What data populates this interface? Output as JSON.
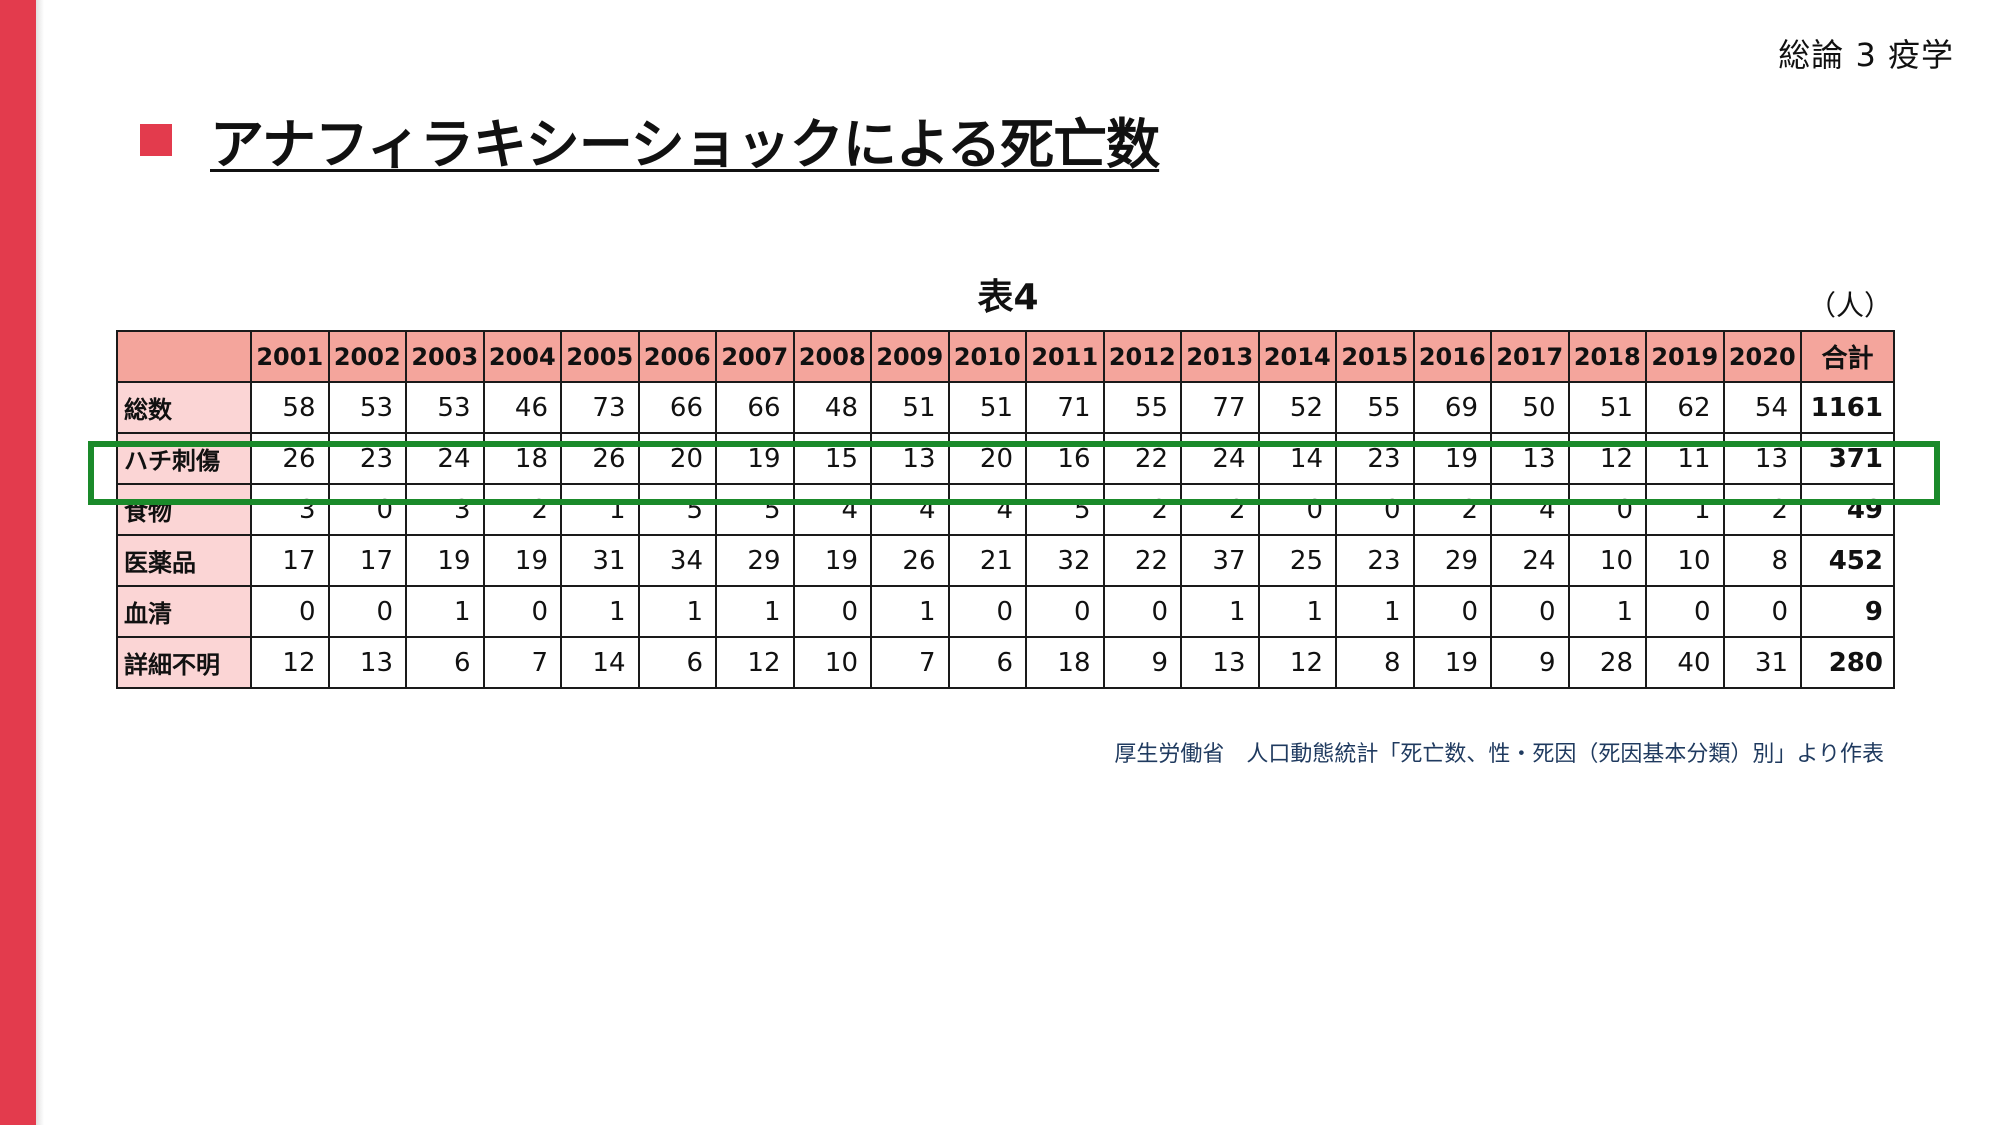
{
  "header": {
    "section_label": "総論 3 疫学"
  },
  "title": "アナフィラキシーショックによる死亡数",
  "table_caption": "表4",
  "unit": "（人）",
  "colors": {
    "accent": "#e33b4d",
    "header_fill": "#f4a59c",
    "row_head_fill": "#fbd5d5",
    "highlight": "#1a8a2a",
    "source_text": "#1f3a5f"
  },
  "table": {
    "columns": [
      "2001",
      "2002",
      "2003",
      "2004",
      "2005",
      "2006",
      "2007",
      "2008",
      "2009",
      "2010",
      "2011",
      "2012",
      "2013",
      "2014",
      "2015",
      "2016",
      "2017",
      "2018",
      "2019",
      "2020",
      "合計"
    ],
    "rows": [
      {
        "label": "総数",
        "values": [
          "58",
          "53",
          "53",
          "46",
          "73",
          "66",
          "66",
          "48",
          "51",
          "51",
          "71",
          "55",
          "77",
          "52",
          "55",
          "69",
          "50",
          "51",
          "62",
          "54",
          "1161"
        ]
      },
      {
        "label": "ハチ刺傷",
        "values": [
          "26",
          "23",
          "24",
          "18",
          "26",
          "20",
          "19",
          "15",
          "13",
          "20",
          "16",
          "22",
          "24",
          "14",
          "23",
          "19",
          "13",
          "12",
          "11",
          "13",
          "371"
        ]
      },
      {
        "label": "食物",
        "values": [
          "3",
          "0",
          "3",
          "2",
          "1",
          "5",
          "5",
          "4",
          "4",
          "4",
          "5",
          "2",
          "2",
          "0",
          "0",
          "2",
          "4",
          "0",
          "1",
          "2",
          "49"
        ]
      },
      {
        "label": "医薬品",
        "values": [
          "17",
          "17",
          "19",
          "19",
          "31",
          "34",
          "29",
          "19",
          "26",
          "21",
          "32",
          "22",
          "37",
          "25",
          "23",
          "29",
          "24",
          "10",
          "10",
          "8",
          "452"
        ]
      },
      {
        "label": "血清",
        "values": [
          "0",
          "0",
          "1",
          "0",
          "1",
          "1",
          "1",
          "0",
          "1",
          "0",
          "0",
          "0",
          "1",
          "1",
          "1",
          "0",
          "0",
          "1",
          "0",
          "0",
          "9"
        ]
      },
      {
        "label": "詳細不明",
        "values": [
          "12",
          "13",
          "6",
          "7",
          "14",
          "6",
          "12",
          "10",
          "7",
          "6",
          "18",
          "9",
          "13",
          "12",
          "8",
          "19",
          "9",
          "28",
          "40",
          "31",
          "280"
        ]
      }
    ]
  },
  "source_note": "厚生労働省　人口動態統計「死亡数、性・死因（死因基本分類）別」より作表"
}
